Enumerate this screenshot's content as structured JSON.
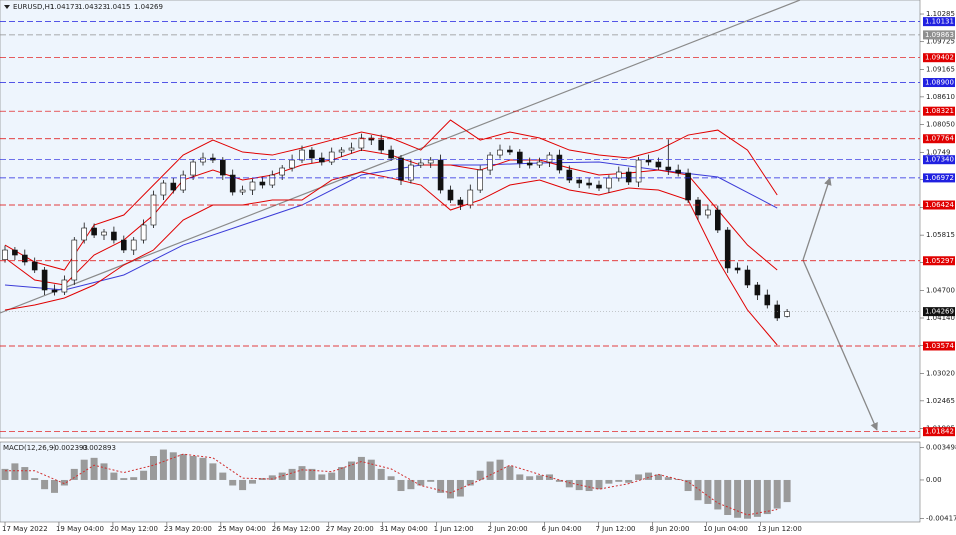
{
  "chart_data": {
    "type": "candlestick",
    "symbol": "EURUSD,H1",
    "ylim": [
      1.01714,
      1.10528
    ],
    "yticks": [
      1.10285,
      1.09725,
      1.09165,
      {
        "value": 1.0861,
        "label": "1.08610"
      },
      {
        "value": 1.0805,
        "label": "1.08050"
      },
      1.0749,
      1.06935,
      1.06375,
      1.05815,
      {
        "value": 1.0526,
        "label": "1.05260"
      },
      {
        "value": 1.047,
        "label": "1.04700"
      },
      {
        "value": 1.0414,
        "label": "1.04140"
      },
      {
        "value": 1.0358,
        "label": "1.03580"
      },
      {
        "value": 1.0302,
        "label": "1.03020"
      },
      1.02465,
      1.01905
    ],
    "xticks": [
      {
        "value": 0,
        "label": "17 May 2022"
      },
      {
        "value": 5.45,
        "label": "19 May 04:00"
      },
      {
        "value": 10.9,
        "label": "20 May 12:00"
      },
      {
        "value": 16.35,
        "label": "23 May 20:00"
      },
      {
        "value": 21.8,
        "label": "25 May 04:00"
      },
      {
        "value": 27.25,
        "label": "26 May 12:00"
      },
      {
        "value": 32.7,
        "label": "27 May 20:00"
      },
      {
        "value": 38.15,
        "label": "31 May 04:00"
      },
      {
        "value": 43.6,
        "label": "1 Jun 12:00"
      },
      {
        "value": 49.05,
        "label": "2 Jun 20:00"
      },
      {
        "value": 54.5,
        "label": "6 Jun 04:00"
      },
      {
        "value": 59.95,
        "label": "7 Jun 12:00"
      },
      {
        "value": 65.4,
        "label": "8 Jun 20:00"
      },
      {
        "value": 70.85,
        "label": "10 Jun 04:00"
      },
      {
        "value": 76.3,
        "label": "13 Jun 12:00"
      }
    ],
    "open": [
      1.0532,
      1.05514,
      1.05413,
      1.05272,
      1.0511,
      1.04706,
      1.04665,
      1.04908,
      1.05716,
      1.05959,
      1.05817,
      1.05878,
      1.05716,
      1.05514,
      1.05716,
      1.0602,
      1.06626,
      1.06868,
      1.06727,
      1.0703,
      1.07293,
      1.07374,
      1.07333,
      1.0703,
      1.06686,
      1.06727,
      1.06889,
      1.06828,
      1.0703,
      1.07172,
      1.07333,
      1.07535,
      1.07374,
      1.07293,
      1.07495,
      1.07535,
      1.07576,
      1.07778,
      1.07737,
      1.07535,
      1.07374,
      1.06929,
      1.07232,
      1.07273,
      1.07333,
      1.06727,
      1.06525,
      1.06424,
      1.06727,
      1.07131,
      1.07434,
      1.07535,
      1.07495,
      1.07273,
      1.07232,
      1.07293,
      1.07434,
      1.07131,
      1.06929,
      1.06868,
      1.06828,
      1.06767,
      1.06969,
      1.07091,
      1.06889,
      1.07333,
      1.07293,
      1.07192,
      1.07131,
      1.0707,
      1.06525,
      1.06222,
      1.06323,
      1.05918,
      1.05151,
      1.0511,
      1.04807,
      1.04605,
      1.04403,
      1.04173
    ],
    "high": [
      1.05604,
      1.05574,
      1.05523,
      1.05362,
      1.0517,
      1.04816,
      1.04998,
      1.05776,
      1.06069,
      1.06049,
      1.05938,
      1.05988,
      1.05806,
      1.05776,
      1.0613,
      1.06716,
      1.06928,
      1.06978,
      1.0712,
      1.07353,
      1.07484,
      1.07464,
      1.07393,
      1.0714,
      1.06817,
      1.06949,
      1.06999,
      1.0712,
      1.07232,
      1.07443,
      1.07625,
      1.07595,
      1.07484,
      1.07585,
      1.07595,
      1.07686,
      1.07868,
      1.07838,
      1.07847,
      1.07625,
      1.07434,
      1.07342,
      1.07363,
      1.07393,
      1.07443,
      1.06817,
      1.06585,
      1.06837,
      1.07221,
      1.07494,
      1.07645,
      1.07625,
      1.07555,
      1.07383,
      1.07383,
      1.07494,
      1.07544,
      1.07221,
      1.06989,
      1.06978,
      1.06918,
      1.07029,
      1.07201,
      1.07181,
      1.07393,
      1.07443,
      1.07383,
      1.07752,
      1.07241,
      1.0716,
      1.06585,
      1.06433,
      1.06413,
      1.05978,
      1.05261,
      1.052,
      1.04867,
      1.04715,
      1.04493,
      1.04323
    ],
    "low": [
      1.0526,
      1.05313,
      1.05202,
      1.0505,
      1.04606,
      1.04595,
      1.04605,
      1.04808,
      1.05646,
      1.05757,
      1.05717,
      1.05646,
      1.05454,
      1.05414,
      1.05646,
      1.0596,
      1.06526,
      1.06657,
      1.06667,
      1.0693,
      1.07223,
      1.07273,
      1.0693,
      1.06616,
      1.06626,
      1.06627,
      1.06758,
      1.06768,
      1.0693,
      1.07102,
      1.07273,
      1.07274,
      1.07223,
      1.07233,
      1.07395,
      1.07465,
      1.07516,
      1.07637,
      1.07465,
      1.07314,
      1.06829,
      1.06859,
      1.07172,
      1.07173,
      1.06657,
      1.06465,
      1.06324,
      1.06354,
      1.06667,
      1.07031,
      1.07364,
      1.07435,
      1.07173,
      1.07162,
      1.07172,
      1.07193,
      1.07061,
      1.06869,
      1.06768,
      1.06758,
      1.06707,
      1.06667,
      1.06899,
      1.06829,
      1.06789,
      1.07223,
      1.07132,
      1.07031,
      1.07,
      1.06465,
      1.06122,
      1.06152,
      1.05858,
      1.05051,
      1.0504,
      1.04747,
      1.04505,
      1.04333,
      1.0408,
      1.0415
    ],
    "close": [
      1.05514,
      1.05413,
      1.05272,
      1.0511,
      1.04706,
      1.04665,
      1.04908,
      1.05716,
      1.05959,
      1.05817,
      1.05878,
      1.05716,
      1.05514,
      1.05716,
      1.0602,
      1.06626,
      1.06868,
      1.06727,
      1.0703,
      1.07293,
      1.07374,
      1.07333,
      1.0703,
      1.06686,
      1.06727,
      1.06889,
      1.06828,
      1.0703,
      1.07172,
      1.07333,
      1.07535,
      1.07374,
      1.07293,
      1.07495,
      1.07535,
      1.07576,
      1.07778,
      1.07737,
      1.07535,
      1.07374,
      1.06929,
      1.07232,
      1.07273,
      1.07333,
      1.06727,
      1.06525,
      1.06424,
      1.06727,
      1.07131,
      1.07434,
      1.07535,
      1.07495,
      1.07273,
      1.07232,
      1.07293,
      1.07434,
      1.07131,
      1.06929,
      1.06868,
      1.06828,
      1.06767,
      1.06969,
      1.07091,
      1.06889,
      1.07333,
      1.07293,
      1.07192,
      1.07131,
      1.0707,
      1.06525,
      1.06222,
      1.06323,
      1.05918,
      1.05151,
      1.0511,
      1.04807,
      1.04605,
      1.04403,
      1.0414,
      1.04269
    ],
    "band_x": [
      0,
      3,
      6,
      9,
      12,
      15,
      18,
      21,
      24,
      27,
      30,
      33,
      36,
      39,
      42,
      45,
      48,
      51,
      54,
      57,
      60,
      63,
      66,
      69,
      72,
      75,
      78
    ],
    "bands": [
      {
        "color": "#e00000",
        "values": [
          1.05615,
          1.05272,
          1.0511,
          1.0602,
          1.06222,
          1.06828,
          1.07434,
          1.07737,
          1.07495,
          1.07434,
          1.07576,
          1.07737,
          1.07899,
          1.07778,
          1.07535,
          1.08142,
          1.07737,
          1.07899,
          1.07778,
          1.07535,
          1.07434,
          1.07374,
          1.07535,
          1.07838,
          1.07939,
          1.07535,
          1.06626
        ]
      },
      {
        "color": "#e00000",
        "values": [
          1.05353,
          1.04908,
          1.04807,
          1.05413,
          1.05716,
          1.06222,
          1.06929,
          1.07131,
          1.06929,
          1.0703,
          1.07232,
          1.07333,
          1.07535,
          1.07434,
          1.07232,
          1.07232,
          1.07131,
          1.07333,
          1.07333,
          1.07172,
          1.0703,
          1.0707,
          1.07131,
          1.0703,
          1.06323,
          1.05615,
          1.0511
        ]
      },
      {
        "color": "#e00000",
        "values": [
          1.04302,
          1.04403,
          1.04544,
          1.04807,
          1.05211,
          1.05514,
          1.06121,
          1.06424,
          1.06424,
          1.06525,
          1.06525,
          1.06929,
          1.07091,
          1.06969,
          1.06828,
          1.06323,
          1.06525,
          1.06828,
          1.06929,
          1.06727,
          1.06626,
          1.06767,
          1.06727,
          1.06525,
          1.05312,
          1.04302,
          1.03594
        ]
      }
    ],
    "ma_x": [
      0,
      6,
      12,
      18,
      24,
      30,
      36,
      42,
      48,
      54,
      60,
      66,
      72,
      78
    ],
    "ma": {
      "color": "#3c3cd8",
      "values": [
        1.04807,
        1.04706,
        1.05009,
        1.05615,
        1.0602,
        1.06424,
        1.0703,
        1.07232,
        1.07232,
        1.07273,
        1.07293,
        1.07131,
        1.0699,
        1.06363
      ]
    },
    "trendline": {
      "color": "#8a8a8a",
      "x": [
        -0.5,
        80.3
      ],
      "y": [
        1.04241,
        1.10567
      ]
    },
    "levels": [
      {
        "value": 1.10131,
        "label": "1.10131",
        "color": "#2020e0"
      },
      {
        "value": 1.09863,
        "label": "1.09863",
        "color": "#909090"
      },
      {
        "value": 1.09402,
        "label": "1.09402",
        "color": "#e00000"
      },
      {
        "value": 1.089,
        "label": "1.08900",
        "color": "#2020e0"
      },
      {
        "value": 1.08321,
        "label": "1.08321",
        "color": "#e00000"
      },
      {
        "value": 1.07764,
        "label": "1.07764",
        "color": "#e00000"
      },
      {
        "value": 1.0734,
        "label": "1.07340",
        "color": "#2020e0"
      },
      {
        "value": 1.06972,
        "label": "1.06972",
        "color": "#2020e0"
      },
      {
        "value": 1.06424,
        "label": "1.06424",
        "color": "#e00000"
      },
      {
        "value": 1.05297,
        "label": "1.05297",
        "color": "#e00000"
      },
      {
        "value": 1.03574,
        "label": "1.03574",
        "color": "#e00000"
      },
      {
        "value": 1.01842,
        "label": "1.01842",
        "color": "#e00000"
      }
    ],
    "macd": {
      "title": "MACD(12,26,9)",
      "main_value": -0.002393,
      "signal_value": -0.002893,
      "ylim": [
        -0.00456,
        0.00401
      ],
      "yticks": [
        0.003498,
        {
          "value": 0,
          "label": "0.00"
        },
        -0.004173
      ],
      "values": [
        0.0012,
        0.0018,
        0.0014,
        0.0002,
        -0.001,
        -0.0014,
        -0.0006,
        0.0012,
        0.0022,
        0.0024,
        0.0018,
        0.0008,
        0.0002,
        0.0003,
        0.001,
        0.0026,
        0.0033,
        0.003,
        0.0028,
        0.0026,
        0.0024,
        0.0018,
        0.0008,
        -0.0006,
        -0.0011,
        -0.0004,
        0.0002,
        0.0005,
        0.0008,
        0.0012,
        0.0015,
        0.0012,
        0.0006,
        0.0008,
        0.0014,
        0.002,
        0.0025,
        0.0022,
        0.0012,
        0.0004,
        -0.0012,
        -0.001,
        -0.0006,
        -0.0002,
        -0.0014,
        -0.002,
        -0.0018,
        -0.0006,
        0.001,
        0.002,
        0.0022,
        0.0015,
        0.0006,
        0.0004,
        0.0005,
        0.0006,
        -0.0002,
        -0.0008,
        -0.0011,
        -0.0012,
        -0.001,
        -0.0004,
        -0.0002,
        -0.0003,
        0.0006,
        0.0008,
        0.0006,
        0.0003,
        0.0001,
        -0.0012,
        -0.0022,
        -0.0026,
        -0.0032,
        -0.0038,
        -0.0041,
        -0.0042,
        -0.004,
        -0.0037,
        -0.0031,
        -0.0024
      ],
      "signal_x": [
        0,
        3,
        6,
        9,
        12,
        15,
        18,
        21,
        24,
        27,
        30,
        33,
        36,
        39,
        42,
        45,
        48,
        51,
        54,
        57,
        60,
        63,
        66,
        69,
        72,
        75,
        78
      ],
      "signal": [
        0.001,
        0.001,
        -0.0004,
        0.0016,
        0.0008,
        0.0016,
        0.0028,
        0.0024,
        0.0002,
        0.0001,
        0.0011,
        0.0009,
        0.002,
        0.0012,
        -0.0006,
        -0.0014,
        0,
        0.0016,
        0.0006,
        -0.0003,
        -0.001,
        -0.0004,
        0.0006,
        -0.0002,
        -0.0025,
        -0.0038,
        -0.0032
      ]
    }
  }
}
